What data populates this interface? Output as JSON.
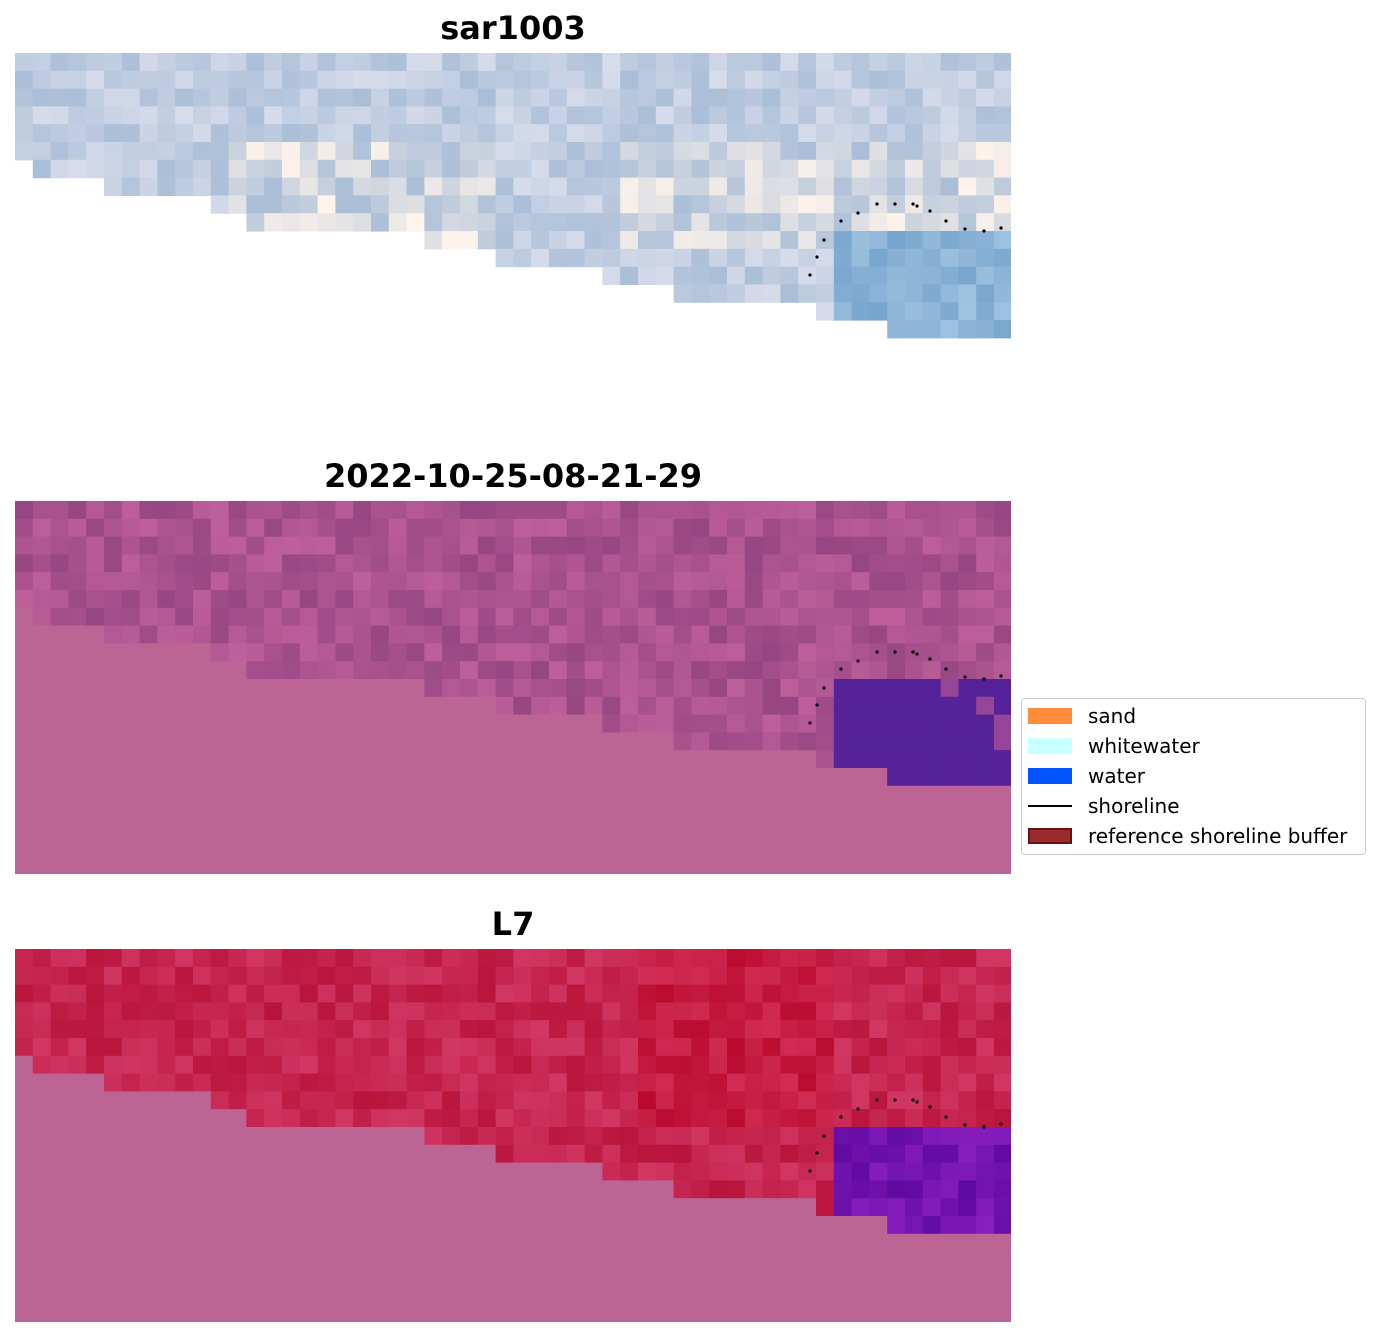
{
  "panels": [
    {
      "title": "sar1003",
      "palette": "rgb"
    },
    {
      "title": "2022-10-25-08-21-29",
      "palette": "classified"
    },
    {
      "title": "L7",
      "palette": "index"
    }
  ],
  "legend": {
    "items": [
      {
        "label": "sand",
        "color": "#ff8c3a",
        "kind": "patch"
      },
      {
        "label": "whitewater",
        "color": "#c8ffff",
        "kind": "patch"
      },
      {
        "label": "water",
        "color": "#0055ff",
        "kind": "patch"
      },
      {
        "label": "shoreline",
        "color": "#000000",
        "kind": "line"
      },
      {
        "label": "reference shoreline buffer",
        "color": "#9b2a2a",
        "edge": "#6a1010",
        "kind": "patch"
      }
    ]
  },
  "colors": {
    "nodata_pink": "#bc6594",
    "classified_water": "#55229a",
    "index_red": "#c01040",
    "index_water": "#6a10a0"
  }
}
